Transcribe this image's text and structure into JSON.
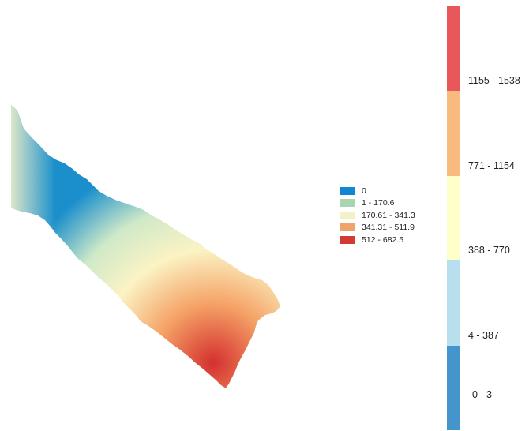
{
  "map": {
    "ramp_colors": [
      "#1a8fcc",
      "#cfe9c8",
      "#fbf3c4",
      "#f5a266",
      "#d42f2f"
    ],
    "shape_border": "#ffffff"
  },
  "inner_legend": {
    "items": [
      {
        "label": "0",
        "color": "#1187d3"
      },
      {
        "label": "1 - 170.6",
        "color": "#a9d4b0"
      },
      {
        "label": "170.61 - 341.3",
        "color": "#f3f1c8"
      },
      {
        "label": "341.31 - 511.9",
        "color": "#f0a46a"
      },
      {
        "label": "512 - 682.5",
        "color": "#d33b32"
      }
    ]
  },
  "color_bar": {
    "segments": [
      {
        "label": "1155 - 1538",
        "color": "#e8575a"
      },
      {
        "label": "771 - 1154",
        "color": "#f8ba7d"
      },
      {
        "label": "388 - 770",
        "color": "#ffffca"
      },
      {
        "label": "4 - 387",
        "color": "#b7dfee"
      },
      {
        "label": "0 - 3",
        "color": "#4395cb"
      }
    ]
  }
}
